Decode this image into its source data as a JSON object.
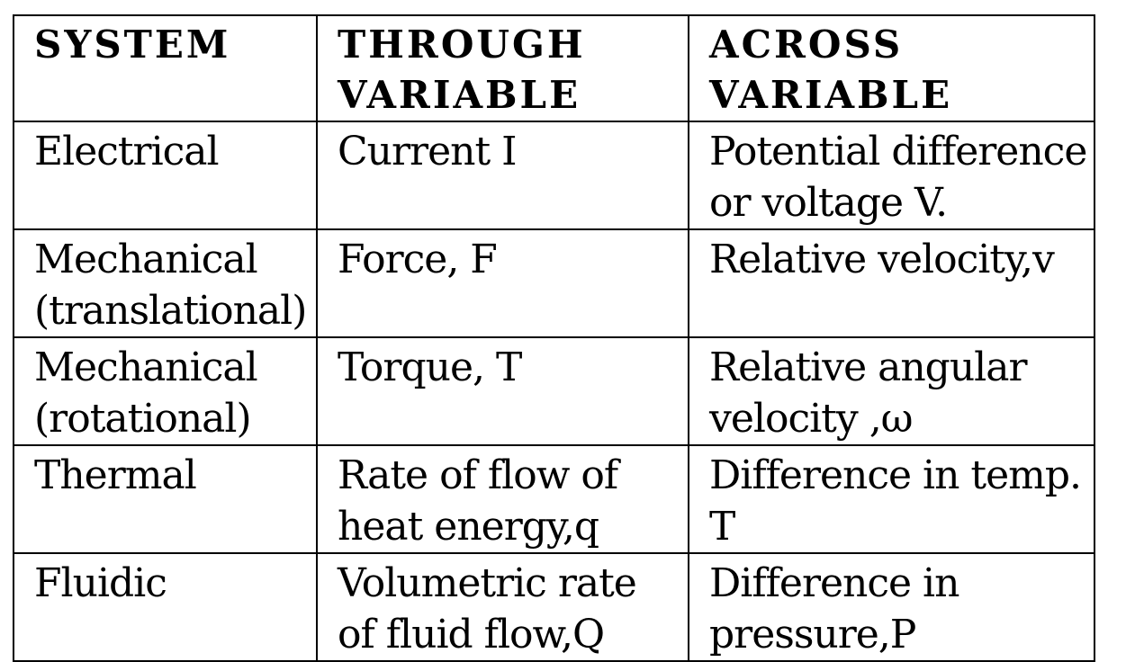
{
  "table": {
    "headers": [
      "SYSTEM",
      [
        "THROUGH",
        "VARIABLE"
      ],
      [
        "ACROSS",
        "VARIABLE"
      ]
    ],
    "rows": [
      {
        "system": [
          "Electrical"
        ],
        "through": [
          "Current I"
        ],
        "across": [
          "Potential difference",
          "or voltage V."
        ]
      },
      {
        "system": [
          "Mechanical",
          "(translational)"
        ],
        "through": [
          "Force, F"
        ],
        "across": [
          "Relative velocity,v"
        ]
      },
      {
        "system": [
          "Mechanical",
          "(rotational)"
        ],
        "through": [
          "Torque, T"
        ],
        "across": [
          "Relative angular",
          "velocity ,ω"
        ]
      },
      {
        "system": [
          "Thermal"
        ],
        "through": [
          "Rate of flow of",
          "heat energy,q"
        ],
        "across": [
          "Difference in temp.",
          "T"
        ]
      },
      {
        "system": [
          "Fluidic"
        ],
        "through": [
          "Volumetric rate",
          "of fluid flow,Q"
        ],
        "across": [
          "Difference in",
          "pressure,P"
        ]
      }
    ]
  }
}
